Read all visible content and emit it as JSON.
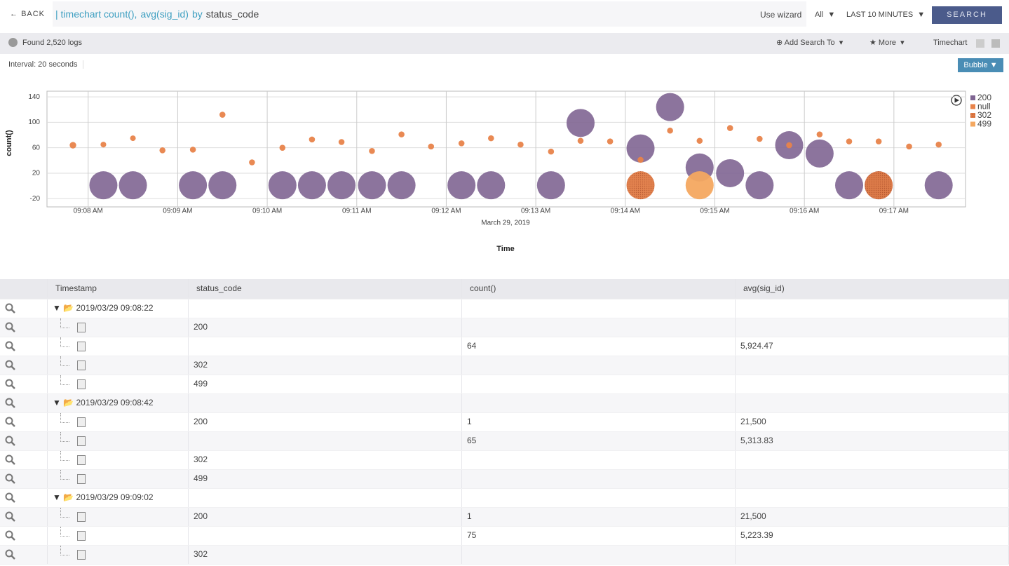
{
  "toolbar": {
    "back": "BACK",
    "query": [
      "| timechart count(),",
      "avg(sig_id)",
      "by",
      "status_code"
    ],
    "wizard": "Use wizard",
    "scope": "All",
    "range": "LAST 10 MINUTES",
    "search": "SEARCH"
  },
  "status": {
    "found": "Found 2,520 logs",
    "add": "Add Search To",
    "more": "More",
    "view": "Timechart"
  },
  "interval": "Interval: 20 seconds",
  "chart_kind": "Bubble",
  "chart_data": {
    "type": "bubble",
    "x_label": "Time",
    "x_sublabel": "March 29, 2019",
    "y_label": "count()",
    "x": [
      7.83,
      8.17,
      8.5,
      8.83,
      9.17,
      9.5,
      9.83,
      10.17,
      10.5,
      10.83,
      11.17,
      11.5,
      11.83,
      12.17,
      12.5,
      12.83,
      13.17,
      13.5,
      13.83,
      14.17,
      14.5,
      14.83,
      15.17,
      15.5,
      15.83,
      16.17,
      16.5,
      16.83,
      17.17,
      17.5
    ],
    "xlim": [
      7.54,
      17.8
    ],
    "xticks": [
      {
        "value": 8,
        "label": "09:08 AM"
      },
      {
        "value": 9,
        "label": "09:09 AM"
      },
      {
        "value": 10,
        "label": "09:10 AM"
      },
      {
        "value": 11,
        "label": "09:11 AM"
      },
      {
        "value": 12,
        "label": "09:12 AM"
      },
      {
        "value": 13,
        "label": "09:13 AM"
      },
      {
        "value": 14,
        "label": "09:14 AM"
      },
      {
        "value": 15,
        "label": "09:15 AM"
      },
      {
        "value": 16,
        "label": "09:16 AM"
      },
      {
        "value": 17,
        "label": "09:17 AM"
      }
    ],
    "ylim": [
      -33,
      149
    ],
    "yticks": [
      -20,
      20,
      60,
      100,
      140
    ],
    "grid": true,
    "series": [
      {
        "name": "200",
        "color": "#7f6592",
        "values": [
          null,
          1,
          1,
          null,
          1,
          1,
          null,
          1,
          1,
          1,
          1,
          1,
          null,
          1,
          1,
          null,
          1,
          99,
          null,
          59,
          124,
          29,
          20,
          1,
          64,
          51,
          1,
          1,
          null,
          1
        ],
        "sizes": [
          null,
          21500,
          21500,
          null,
          21500,
          21500,
          null,
          21500,
          21500,
          21500,
          21500,
          21500,
          null,
          21500,
          21500,
          null,
          21500,
          21500,
          null,
          21500,
          21500,
          21500,
          21500,
          21500,
          21500,
          21500,
          21500,
          21500,
          null,
          21500
        ]
      },
      {
        "name": "null",
        "color": "#e8834a",
        "values": [
          64,
          65,
          75,
          56,
          57,
          112,
          37,
          60,
          73,
          69,
          55,
          81,
          62,
          67,
          75,
          65,
          54,
          71,
          70,
          41,
          87,
          71,
          91,
          74,
          64,
          81,
          70,
          70,
          62,
          65
        ],
        "sizes": [
          5924.47,
          5313.83,
          5223.39,
          5500,
          5500,
          5500,
          5500,
          5500,
          5500,
          5500,
          5500,
          5500,
          5500,
          5500,
          5500,
          5500,
          5500,
          5500,
          5500,
          5500,
          5500,
          5500,
          5500,
          5500,
          5500,
          5500,
          5500,
          5500,
          5500,
          5500
        ]
      },
      {
        "name": "302",
        "color": "#e07b45",
        "values": [
          null,
          null,
          null,
          null,
          null,
          null,
          null,
          null,
          null,
          null,
          null,
          null,
          null,
          null,
          null,
          null,
          null,
          null,
          null,
          1,
          null,
          null,
          null,
          null,
          null,
          null,
          null,
          1,
          null,
          null
        ],
        "sizes": [
          null,
          null,
          null,
          null,
          null,
          null,
          null,
          null,
          null,
          null,
          null,
          null,
          null,
          null,
          null,
          null,
          null,
          null,
          null,
          21500,
          null,
          null,
          null,
          null,
          null,
          null,
          null,
          21500,
          null,
          null
        ]
      },
      {
        "name": "499",
        "color": "#f4a860",
        "values": [
          null,
          null,
          null,
          null,
          null,
          null,
          null,
          null,
          null,
          null,
          null,
          null,
          null,
          null,
          null,
          null,
          null,
          null,
          null,
          null,
          null,
          1,
          null,
          null,
          null,
          null,
          null,
          null,
          null,
          null
        ],
        "sizes": [
          null,
          null,
          null,
          null,
          null,
          null,
          null,
          null,
          null,
          null,
          null,
          null,
          null,
          null,
          null,
          null,
          null,
          null,
          null,
          null,
          null,
          21500,
          null,
          null,
          null,
          null,
          null,
          null,
          null,
          null
        ]
      }
    ]
  },
  "table": {
    "columns": [
      "Timestamp",
      "status_code",
      "count()",
      "avg(sig_id)"
    ],
    "groups": [
      {
        "timestamp": "2019/03/29 09:08:22",
        "rows": [
          [
            "200",
            "",
            ""
          ],
          [
            "",
            "64",
            "5,924.47"
          ],
          [
            "302",
            "",
            ""
          ],
          [
            "499",
            "",
            ""
          ]
        ]
      },
      {
        "timestamp": "2019/03/29 09:08:42",
        "rows": [
          [
            "200",
            "1",
            "21,500"
          ],
          [
            "",
            "65",
            "5,313.83"
          ],
          [
            "302",
            "",
            ""
          ],
          [
            "499",
            "",
            ""
          ]
        ]
      },
      {
        "timestamp": "2019/03/29 09:09:02",
        "rows": [
          [
            "200",
            "1",
            "21,500"
          ],
          [
            "",
            "75",
            "5,223.39"
          ],
          [
            "302",
            "",
            ""
          ]
        ]
      }
    ]
  }
}
